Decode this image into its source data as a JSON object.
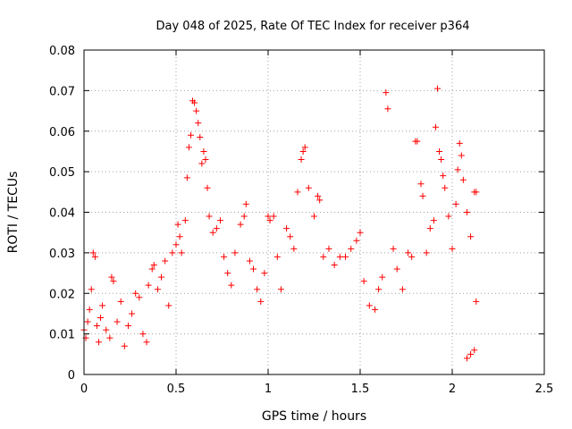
{
  "chart_data": {
    "type": "scatter",
    "title": "Day 048 of 2025, Rate Of TEC Index for receiver p364",
    "xlabel": "GPS time / hours",
    "ylabel": "ROTI / TECUs",
    "xlim": [
      0,
      2.5
    ],
    "ylim": [
      0,
      0.08
    ],
    "x_ticks": [
      0,
      0.5,
      1,
      1.5,
      2,
      2.5
    ],
    "x_tick_labels": [
      "0",
      "0.5",
      "1",
      "1.5",
      "2",
      "2.5"
    ],
    "y_ticks": [
      0,
      0.01,
      0.02,
      0.03,
      0.04,
      0.05,
      0.06,
      0.07,
      0.08
    ],
    "y_tick_labels": [
      "0",
      "0.01",
      "0.02",
      "0.03",
      "0.04",
      "0.05",
      "0.06",
      "0.07",
      "0.08"
    ],
    "grid": true,
    "marker": "+",
    "color": "#ff0000",
    "series": [
      {
        "name": "ROTI",
        "points": [
          [
            0.0,
            0.011
          ],
          [
            0.01,
            0.009
          ],
          [
            0.02,
            0.013
          ],
          [
            0.03,
            0.016
          ],
          [
            0.04,
            0.021
          ],
          [
            0.05,
            0.03
          ],
          [
            0.06,
            0.029
          ],
          [
            0.07,
            0.012
          ],
          [
            0.08,
            0.008
          ],
          [
            0.09,
            0.014
          ],
          [
            0.1,
            0.017
          ],
          [
            0.12,
            0.011
          ],
          [
            0.14,
            0.009
          ],
          [
            0.15,
            0.024
          ],
          [
            0.16,
            0.023
          ],
          [
            0.18,
            0.013
          ],
          [
            0.2,
            0.018
          ],
          [
            0.22,
            0.007
          ],
          [
            0.24,
            0.012
          ],
          [
            0.26,
            0.015
          ],
          [
            0.28,
            0.02
          ],
          [
            0.3,
            0.019
          ],
          [
            0.32,
            0.01
          ],
          [
            0.34,
            0.008
          ],
          [
            0.35,
            0.022
          ],
          [
            0.37,
            0.026
          ],
          [
            0.38,
            0.027
          ],
          [
            0.4,
            0.021
          ],
          [
            0.42,
            0.024
          ],
          [
            0.44,
            0.028
          ],
          [
            0.46,
            0.017
          ],
          [
            0.48,
            0.03
          ],
          [
            0.5,
            0.032
          ],
          [
            0.51,
            0.037
          ],
          [
            0.52,
            0.034
          ],
          [
            0.53,
            0.03
          ],
          [
            0.55,
            0.038
          ],
          [
            0.56,
            0.0485
          ],
          [
            0.57,
            0.056
          ],
          [
            0.58,
            0.059
          ],
          [
            0.59,
            0.0675
          ],
          [
            0.6,
            0.067
          ],
          [
            0.61,
            0.065
          ],
          [
            0.62,
            0.062
          ],
          [
            0.63,
            0.0585
          ],
          [
            0.64,
            0.052
          ],
          [
            0.65,
            0.055
          ],
          [
            0.66,
            0.053
          ],
          [
            0.67,
            0.046
          ],
          [
            0.68,
            0.039
          ],
          [
            0.7,
            0.035
          ],
          [
            0.72,
            0.036
          ],
          [
            0.74,
            0.038
          ],
          [
            0.76,
            0.029
          ],
          [
            0.78,
            0.025
          ],
          [
            0.8,
            0.022
          ],
          [
            0.82,
            0.03
          ],
          [
            0.85,
            0.037
          ],
          [
            0.87,
            0.039
          ],
          [
            0.88,
            0.042
          ],
          [
            0.9,
            0.028
          ],
          [
            0.92,
            0.026
          ],
          [
            0.94,
            0.021
          ],
          [
            0.96,
            0.018
          ],
          [
            0.98,
            0.025
          ],
          [
            1.0,
            0.039
          ],
          [
            1.01,
            0.038
          ],
          [
            1.03,
            0.039
          ],
          [
            1.05,
            0.029
          ],
          [
            1.07,
            0.021
          ],
          [
            1.1,
            0.036
          ],
          [
            1.12,
            0.034
          ],
          [
            1.14,
            0.031
          ],
          [
            1.16,
            0.045
          ],
          [
            1.18,
            0.053
          ],
          [
            1.19,
            0.055
          ],
          [
            1.2,
            0.056
          ],
          [
            1.22,
            0.046
          ],
          [
            1.25,
            0.039
          ],
          [
            1.27,
            0.044
          ],
          [
            1.28,
            0.043
          ],
          [
            1.3,
            0.029
          ],
          [
            1.33,
            0.031
          ],
          [
            1.36,
            0.027
          ],
          [
            1.39,
            0.029
          ],
          [
            1.42,
            0.029
          ],
          [
            1.45,
            0.031
          ],
          [
            1.48,
            0.033
          ],
          [
            1.5,
            0.035
          ],
          [
            1.52,
            0.023
          ],
          [
            1.55,
            0.017
          ],
          [
            1.58,
            0.016
          ],
          [
            1.6,
            0.021
          ],
          [
            1.62,
            0.024
          ],
          [
            1.64,
            0.0695
          ],
          [
            1.65,
            0.0655
          ],
          [
            1.68,
            0.031
          ],
          [
            1.7,
            0.026
          ],
          [
            1.73,
            0.021
          ],
          [
            1.76,
            0.03
          ],
          [
            1.78,
            0.029
          ],
          [
            1.8,
            0.0575
          ],
          [
            1.81,
            0.0575
          ],
          [
            1.83,
            0.047
          ],
          [
            1.84,
            0.044
          ],
          [
            1.86,
            0.03
          ],
          [
            1.88,
            0.036
          ],
          [
            1.9,
            0.038
          ],
          [
            1.91,
            0.061
          ],
          [
            1.92,
            0.0705
          ],
          [
            1.93,
            0.055
          ],
          [
            1.94,
            0.053
          ],
          [
            1.95,
            0.049
          ],
          [
            1.96,
            0.046
          ],
          [
            1.98,
            0.039
          ],
          [
            2.0,
            0.031
          ],
          [
            2.02,
            0.042
          ],
          [
            2.03,
            0.0505
          ],
          [
            2.04,
            0.057
          ],
          [
            2.05,
            0.054
          ],
          [
            2.06,
            0.048
          ],
          [
            2.08,
            0.04
          ],
          [
            2.1,
            0.034
          ],
          [
            2.12,
            0.045
          ],
          [
            2.13,
            0.045
          ],
          [
            2.13,
            0.018
          ],
          [
            2.12,
            0.006
          ],
          [
            2.1,
            0.005
          ],
          [
            2.08,
            0.004
          ]
        ]
      }
    ]
  }
}
